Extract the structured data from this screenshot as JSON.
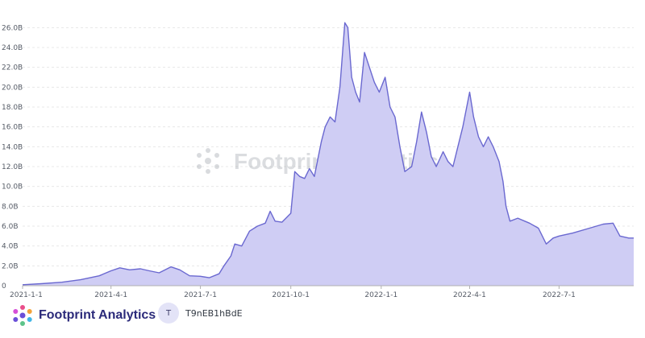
{
  "watermark": {
    "text": "Footprint Analytics"
  },
  "footer": {
    "brand_name": "Footprint Analytics",
    "avatar_initial": "T",
    "username": "T9nEB1hBdE"
  },
  "colors": {
    "line": "#6a68d0",
    "fill": "#cfcdf4",
    "grid": "#e8e8e8",
    "axis": "#b0b0b0"
  },
  "chart_data": {
    "type": "area",
    "title": "",
    "xlabel": "",
    "ylabel": "",
    "ylim": [
      0,
      27000000000
    ],
    "xlim": [
      "2021-01-01",
      "2022-09-15"
    ],
    "y_ticks": [
      0,
      2000000000,
      4000000000,
      6000000000,
      8000000000,
      10000000000,
      12000000000,
      14000000000,
      16000000000,
      18000000000,
      20000000000,
      22000000000,
      24000000000,
      26000000000
    ],
    "y_tick_labels": [
      "0",
      "2.0B",
      "4.0B",
      "6.0B",
      "8.0B",
      "10.0B",
      "12.0B",
      "14.0B",
      "16.0B",
      "18.0B",
      "20.0B",
      "22.0B",
      "24.0B",
      "26.0B"
    ],
    "x_ticks": [
      "2021-01-01",
      "2021-04-01",
      "2021-07-01",
      "2021-10-01",
      "2022-01-01",
      "2022-04-01",
      "2022-07-01"
    ],
    "x_tick_labels": [
      "2021-1-1",
      "2021-4-1",
      "2021-7-1",
      "2021-10-1",
      "2022-1-1",
      "2022-4-1",
      "2022-7-1"
    ],
    "grid": true,
    "legend": "none",
    "series": [
      {
        "points": [
          [
            "2021-01-01",
            0.1
          ],
          [
            "2021-01-20",
            0.2
          ],
          [
            "2021-02-10",
            0.35
          ],
          [
            "2021-03-01",
            0.6
          ],
          [
            "2021-03-20",
            1.0
          ],
          [
            "2021-04-01",
            1.5
          ],
          [
            "2021-04-10",
            1.8
          ],
          [
            "2021-04-20",
            1.6
          ],
          [
            "2021-05-01",
            1.7
          ],
          [
            "2021-05-10",
            1.5
          ],
          [
            "2021-05-20",
            1.3
          ],
          [
            "2021-06-01",
            1.9
          ],
          [
            "2021-06-10",
            1.6
          ],
          [
            "2021-06-20",
            1.0
          ],
          [
            "2021-07-01",
            0.95
          ],
          [
            "2021-07-10",
            0.8
          ],
          [
            "2021-07-20",
            1.2
          ],
          [
            "2021-07-25",
            2.0
          ],
          [
            "2021-08-01",
            3.0
          ],
          [
            "2021-08-05",
            4.2
          ],
          [
            "2021-08-12",
            4.0
          ],
          [
            "2021-08-20",
            5.5
          ],
          [
            "2021-08-28",
            6.0
          ],
          [
            "2021-09-05",
            6.3
          ],
          [
            "2021-09-10",
            7.5
          ],
          [
            "2021-09-15",
            6.5
          ],
          [
            "2021-09-22",
            6.4
          ],
          [
            "2021-10-01",
            7.3
          ],
          [
            "2021-10-05",
            11.5
          ],
          [
            "2021-10-10",
            11.0
          ],
          [
            "2021-10-15",
            10.8
          ],
          [
            "2021-10-20",
            11.8
          ],
          [
            "2021-10-25",
            11.0
          ],
          [
            "2021-11-01",
            14.5
          ],
          [
            "2021-11-05",
            16.0
          ],
          [
            "2021-11-10",
            17.0
          ],
          [
            "2021-11-15",
            16.5
          ],
          [
            "2021-11-20",
            20.0
          ],
          [
            "2021-11-25",
            26.5
          ],
          [
            "2021-11-28",
            26.0
          ],
          [
            "2021-12-02",
            21.0
          ],
          [
            "2021-12-06",
            19.5
          ],
          [
            "2021-12-10",
            18.5
          ],
          [
            "2021-12-15",
            23.5
          ],
          [
            "2021-12-20",
            22.0
          ],
          [
            "2021-12-25",
            20.5
          ],
          [
            "2021-12-30",
            19.5
          ],
          [
            "2022-01-05",
            21.0
          ],
          [
            "2022-01-10",
            18.0
          ],
          [
            "2022-01-15",
            17.0
          ],
          [
            "2022-01-20",
            14.0
          ],
          [
            "2022-01-25",
            11.5
          ],
          [
            "2022-02-01",
            12.0
          ],
          [
            "2022-02-06",
            14.5
          ],
          [
            "2022-02-11",
            17.5
          ],
          [
            "2022-02-16",
            15.5
          ],
          [
            "2022-02-21",
            13.0
          ],
          [
            "2022-02-26",
            12.0
          ],
          [
            "2022-03-05",
            13.5
          ],
          [
            "2022-03-10",
            12.5
          ],
          [
            "2022-03-15",
            12.0
          ],
          [
            "2022-03-20",
            14.0
          ],
          [
            "2022-03-25",
            16.0
          ],
          [
            "2022-04-01",
            19.5
          ],
          [
            "2022-04-05",
            17.0
          ],
          [
            "2022-04-10",
            15.0
          ],
          [
            "2022-04-15",
            14.0
          ],
          [
            "2022-04-20",
            15.0
          ],
          [
            "2022-04-25",
            14.0
          ],
          [
            "2022-05-01",
            12.5
          ],
          [
            "2022-05-05",
            10.5
          ],
          [
            "2022-05-08",
            8.0
          ],
          [
            "2022-05-12",
            6.5
          ],
          [
            "2022-05-20",
            6.8
          ],
          [
            "2022-06-01",
            6.3
          ],
          [
            "2022-06-10",
            5.8
          ],
          [
            "2022-06-18",
            4.2
          ],
          [
            "2022-06-25",
            4.8
          ],
          [
            "2022-07-01",
            5.0
          ],
          [
            "2022-07-15",
            5.3
          ],
          [
            "2022-08-01",
            5.8
          ],
          [
            "2022-08-15",
            6.2
          ],
          [
            "2022-08-25",
            6.3
          ],
          [
            "2022-09-01",
            5.0
          ],
          [
            "2022-09-10",
            4.8
          ],
          [
            "2022-09-15",
            4.8
          ]
        ]
      }
    ]
  }
}
